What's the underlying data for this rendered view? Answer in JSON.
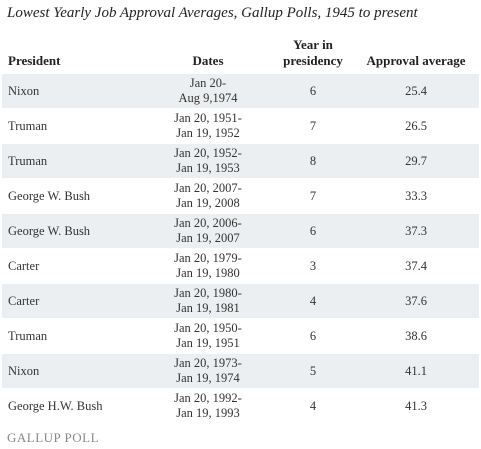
{
  "title": "Lowest Yearly Job Approval Averages, Gallup Polls, 1945 to present",
  "table": {
    "header": [
      [
        "President"
      ],
      [
        "Dates"
      ],
      [
        "Year in",
        "presidency"
      ],
      [
        "Approval average"
      ]
    ],
    "rows": [
      {
        "president": "Nixon",
        "dates": [
          "Jan 20-",
          "Aug 9,1974"
        ],
        "year": 6,
        "approval": 25.4
      },
      {
        "president": "Truman",
        "dates": [
          "Jan 20, 1951-",
          "Jan 19, 1952"
        ],
        "year": 7,
        "approval": 26.5
      },
      {
        "president": "Truman",
        "dates": [
          "Jan 20, 1952-",
          "Jan 19, 1953"
        ],
        "year": 8,
        "approval": 29.7
      },
      {
        "president": "George W. Bush",
        "dates": [
          "Jan 20, 2007-",
          "Jan 19, 2008"
        ],
        "year": 7,
        "approval": 33.3
      },
      {
        "president": "George W. Bush",
        "dates": [
          "Jan 20, 2006-",
          "Jan 19, 2007"
        ],
        "year": 6,
        "approval": 37.3
      },
      {
        "president": "Carter",
        "dates": [
          "Jan 20, 1979-",
          "Jan 19, 1980"
        ],
        "year": 3,
        "approval": 37.4
      },
      {
        "president": "Carter",
        "dates": [
          "Jan 20, 1980-",
          "Jan 19, 1981"
        ],
        "year": 4,
        "approval": 37.6
      },
      {
        "president": "Truman",
        "dates": [
          "Jan 20, 1950-",
          "Jan 19, 1951"
        ],
        "year": 6,
        "approval": 38.6
      },
      {
        "president": "Nixon",
        "dates": [
          "Jan 20, 1973-",
          "Jan 19, 1974"
        ],
        "year": 5,
        "approval": 41.1
      },
      {
        "president": "George H.W. Bush",
        "dates": [
          "Jan 20, 1992-",
          "Jan 19, 1993"
        ],
        "year": 4,
        "approval": 41.3
      }
    ]
  },
  "footer": "GALLUP POLL"
}
